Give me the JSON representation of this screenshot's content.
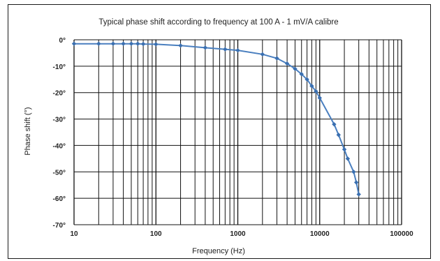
{
  "chart_data": {
    "type": "line",
    "title": "Typical phase shift according to frequency at 100 A - 1 mV/A calibre",
    "xlabel": "Frequency (Hz)",
    "ylabel": "Phase shift (°)",
    "x_scale": "log",
    "xlim": [
      10,
      100000
    ],
    "ylim": [
      -70,
      0
    ],
    "x_ticks": [
      "10",
      "100",
      "1000",
      "10000",
      "100000"
    ],
    "y_ticks": [
      "0°",
      "-10°",
      "-20°",
      "-30°",
      "-40°",
      "-50°",
      "-60°",
      "-70°"
    ],
    "grid": true,
    "line_color": "#4a7fbf",
    "marker_color": "#3a6fb0",
    "series": [
      {
        "x": [
          10,
          20,
          30,
          40,
          50,
          60,
          70,
          100,
          200,
          400,
          700,
          1000,
          2000,
          3000,
          4000,
          5000,
          6000,
          7000,
          8000,
          9000,
          10000,
          15000,
          17000,
          20000,
          22000,
          26000,
          28000,
          30000
        ],
        "y": [
          -1.5,
          -1.5,
          -1.5,
          -1.5,
          -1.5,
          -1.5,
          -1.6,
          -1.7,
          -2.2,
          -3,
          -3.6,
          -4,
          -5.5,
          -7,
          -9,
          -11,
          -13,
          -15,
          -17.5,
          -19.5,
          -22,
          -32,
          -36,
          -41.5,
          -45,
          -50,
          -54,
          -58.5
        ]
      }
    ]
  }
}
